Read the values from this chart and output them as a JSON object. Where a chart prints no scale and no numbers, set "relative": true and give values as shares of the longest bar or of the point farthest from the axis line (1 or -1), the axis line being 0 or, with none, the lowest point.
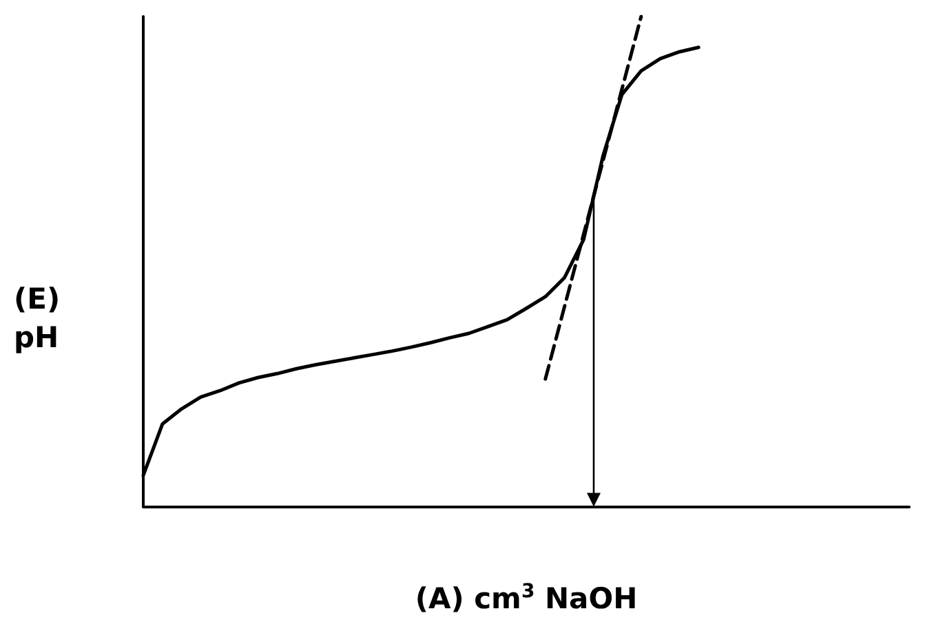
{
  "chart_data": {
    "type": "line",
    "relative": true,
    "xlabel": "(A) cm$^{3}$ NaOH",
    "ylabel": "(E)\npH",
    "grid": false,
    "marker": "none",
    "categories": [
      null,
      null,
      null,
      null,
      null,
      null,
      null,
      null,
      null,
      null,
      null,
      null,
      null,
      null,
      null,
      null,
      null,
      null,
      null,
      null,
      null,
      null,
      null,
      null,
      null,
      null,
      null,
      null,
      null,
      null,
      null,
      null,
      null,
      null,
      null,
      null,
      null,
      null,
      null,
      null,
      null
    ],
    "series": [
      {
        "color": "#000000",
        "line_style": "solid",
        "values": [
          0.063,
          0.168,
          0.199,
          0.223,
          0.236,
          0.252,
          0.263,
          0.271,
          0.281,
          0.289,
          0.296,
          0.303,
          0.31,
          0.317,
          0.325,
          0.334,
          0.344,
          0.353,
          0.367,
          0.381,
          0.404,
          0.428,
          0.467,
          0.545,
          0.714,
          0.841,
          0.889,
          0.914,
          0.928,
          0.937,
          null,
          null,
          null,
          null,
          null,
          null,
          null,
          null,
          null,
          null,
          null
        ]
      },
      {
        "color": "#000000",
        "line_style": "dashed",
        "values": [
          null,
          null,
          null,
          null,
          null,
          null,
          null,
          null,
          null,
          null,
          null,
          null,
          null,
          null,
          null,
          null,
          null,
          null,
          null,
          null,
          null,
          0.26,
          0.408,
          0.556,
          0.704,
          0.852,
          1.0,
          null,
          null,
          null,
          null,
          null,
          null,
          null,
          null,
          null,
          null,
          null,
          null,
          null,
          null
        ]
      }
    ]
  }
}
